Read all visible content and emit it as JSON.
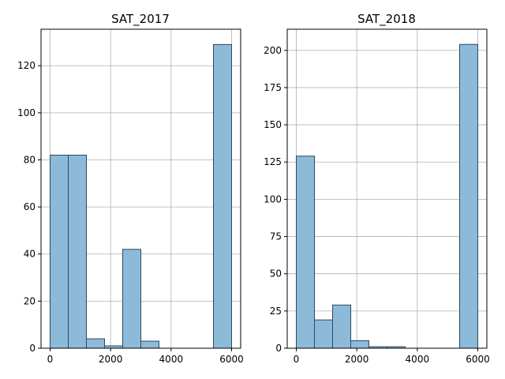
{
  "chart_data": [
    {
      "type": "bar",
      "subtype": "histogram",
      "title": "SAT_2017",
      "xlabel": "",
      "ylabel": "",
      "bin_edges": [
        0,
        600,
        1200,
        1800,
        2400,
        3000,
        3600,
        4200,
        4800,
        5400,
        6000
      ],
      "values": [
        82,
        82,
        4,
        1,
        42,
        3,
        0,
        0,
        0,
        129
      ],
      "xlim": [
        -300,
        6300
      ],
      "ylim": [
        0,
        135.5
      ],
      "xticks": [
        0,
        2000,
        4000,
        6000
      ],
      "yticks": [
        0,
        20,
        40,
        60,
        80,
        100,
        120
      ],
      "grid": true,
      "bar_color": "#8ebad9",
      "edge_color": "#2b4a5e"
    },
    {
      "type": "bar",
      "subtype": "histogram",
      "title": "SAT_2018",
      "xlabel": "",
      "ylabel": "",
      "bin_edges": [
        0,
        600,
        1200,
        1800,
        2400,
        3000,
        3600,
        4200,
        4800,
        5400,
        6000
      ],
      "values": [
        129,
        19,
        29,
        5,
        1,
        1,
        0,
        0,
        0,
        204
      ],
      "xlim": [
        -300,
        6300
      ],
      "ylim": [
        0,
        214.2
      ],
      "xticks": [
        0,
        2000,
        4000,
        6000
      ],
      "yticks": [
        0,
        25,
        50,
        75,
        100,
        125,
        150,
        175,
        200
      ],
      "grid": true,
      "bar_color": "#8ebad9",
      "edge_color": "#2b4a5e"
    }
  ]
}
